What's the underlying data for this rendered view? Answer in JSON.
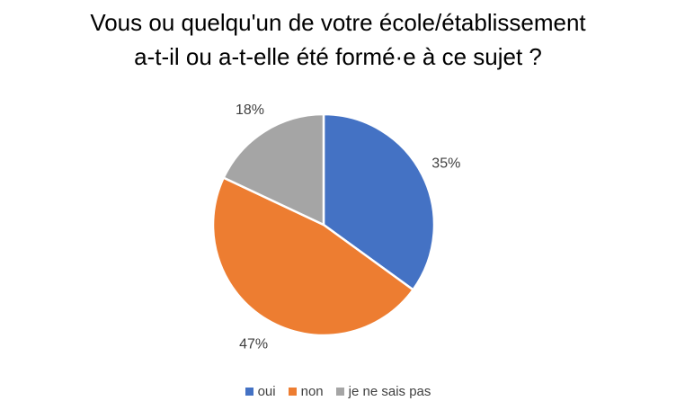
{
  "chart_data": {
    "type": "pie",
    "title_lines": [
      "Vous ou quelqu'un de votre école/établissement",
      "a-t-il ou a-t-elle été formé·e à ce sujet ?"
    ],
    "categories": [
      "oui",
      "non",
      "je ne sais pas"
    ],
    "values": [
      35,
      47,
      18
    ],
    "value_labels": [
      "35%",
      "47%",
      "18%"
    ],
    "colors": [
      "#4472C4",
      "#ED7D31",
      "#A5A5A5"
    ],
    "legend_position": "bottom"
  }
}
